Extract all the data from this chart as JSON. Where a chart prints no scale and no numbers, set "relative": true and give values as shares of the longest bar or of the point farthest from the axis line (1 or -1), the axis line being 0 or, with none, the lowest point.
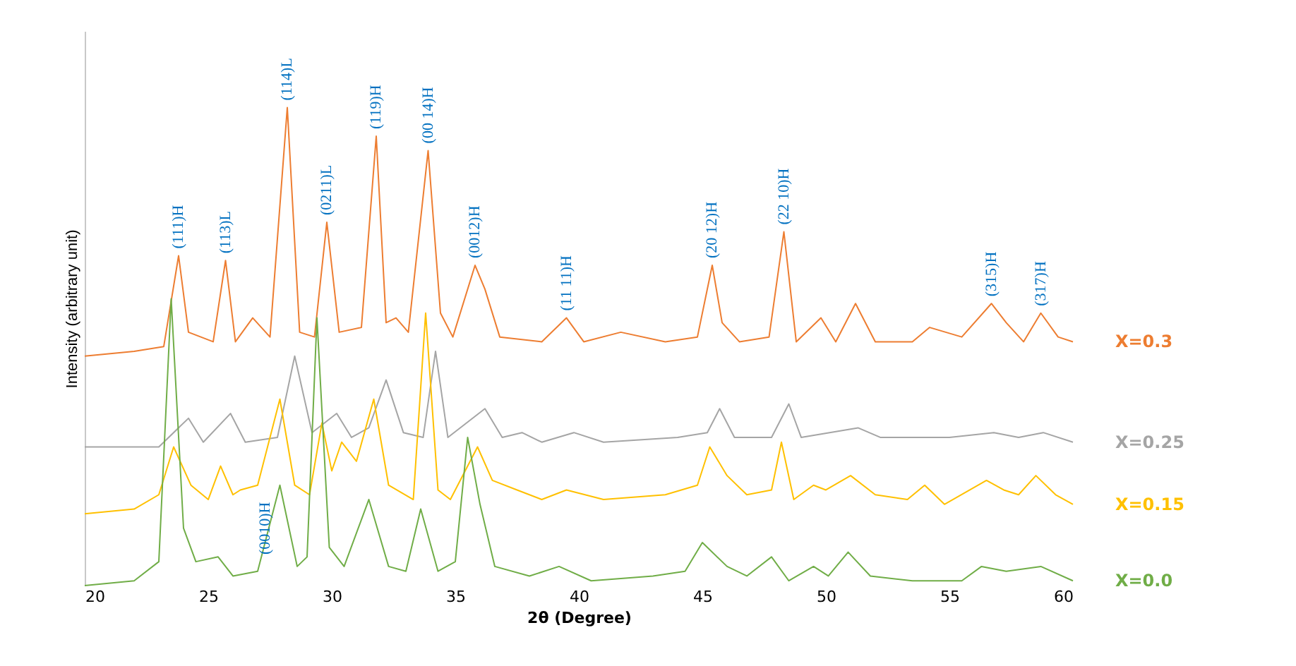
{
  "chart_data": {
    "type": "line",
    "relative": true,
    "xlabel": "2θ (Degree)",
    "ylabel": "Intensity (arbitrary unit)",
    "xlim": [
      20,
      60
    ],
    "xticks": [
      20,
      25,
      30,
      35,
      40,
      45,
      50,
      55,
      60
    ],
    "series": [
      {
        "name": "X=0.3",
        "color": "#ed7d31",
        "x": [
          20,
          22,
          23.2,
          23.8,
          24.2,
          25.2,
          25.7,
          26.1,
          26.8,
          27.5,
          28.2,
          28.7,
          29.3,
          29.8,
          30.3,
          31.2,
          31.8,
          32.2,
          32.6,
          33.1,
          33.9,
          34.4,
          34.9,
          35.8,
          36.2,
          36.8,
          38.5,
          39.5,
          40.2,
          41.7,
          43.5,
          44.8,
          45.4,
          45.8,
          46.5,
          47.7,
          48.3,
          48.8,
          49.8,
          50.4,
          51.2,
          52.0,
          53.5,
          54.2,
          55.5,
          56.7,
          57.3,
          58.0,
          58.7,
          59.4,
          60
        ],
        "values": [
          0.48,
          0.49,
          0.5,
          0.69,
          0.53,
          0.51,
          0.68,
          0.51,
          0.56,
          0.52,
          1.0,
          0.53,
          0.52,
          0.76,
          0.53,
          0.54,
          0.94,
          0.55,
          0.56,
          0.53,
          0.91,
          0.57,
          0.52,
          0.67,
          0.62,
          0.52,
          0.51,
          0.56,
          0.51,
          0.53,
          0.51,
          0.52,
          0.67,
          0.55,
          0.51,
          0.52,
          0.74,
          0.51,
          0.56,
          0.51,
          0.59,
          0.51,
          0.51,
          0.54,
          0.52,
          0.59,
          0.55,
          0.51,
          0.57,
          0.52,
          0.51
        ]
      },
      {
        "name": "X=0.25",
        "color": "#a5a5a5",
        "x": [
          20,
          23,
          24.2,
          24.8,
          25.9,
          26.5,
          27.8,
          28.5,
          29.2,
          30.2,
          30.8,
          31.5,
          32.2,
          32.9,
          33.7,
          34.2,
          34.7,
          36.2,
          36.9,
          37.7,
          38.5,
          39.8,
          41,
          44,
          45.2,
          45.7,
          46.3,
          47.8,
          48.5,
          49.0,
          51.3,
          52.2,
          55,
          56.8,
          57.8,
          58.8,
          60
        ],
        "values": [
          0.29,
          0.29,
          0.35,
          0.3,
          0.36,
          0.3,
          0.31,
          0.48,
          0.32,
          0.36,
          0.31,
          0.33,
          0.43,
          0.32,
          0.31,
          0.49,
          0.31,
          0.37,
          0.31,
          0.32,
          0.3,
          0.32,
          0.3,
          0.31,
          0.32,
          0.37,
          0.31,
          0.31,
          0.38,
          0.31,
          0.33,
          0.31,
          0.31,
          0.32,
          0.31,
          0.32,
          0.3
        ]
      },
      {
        "name": "X=0.15",
        "color": "#ffc000",
        "x": [
          20,
          22,
          23.0,
          23.6,
          24.3,
          25.0,
          25.5,
          26.0,
          26.3,
          27.0,
          27.9,
          28.5,
          29.1,
          29.6,
          30.0,
          30.4,
          31.0,
          31.7,
          32.3,
          33.3,
          33.8,
          34.3,
          34.8,
          35.9,
          36.5,
          37.5,
          38.5,
          39.5,
          41,
          43.5,
          44.8,
          45.3,
          46.0,
          46.8,
          47.8,
          48.2,
          48.7,
          49.5,
          50.0,
          51.0,
          52.0,
          53.3,
          54.0,
          54.8,
          56.5,
          57.2,
          57.8,
          58.5,
          59.3,
          60
        ],
        "values": [
          0.15,
          0.16,
          0.19,
          0.29,
          0.21,
          0.18,
          0.25,
          0.19,
          0.2,
          0.21,
          0.39,
          0.21,
          0.19,
          0.34,
          0.24,
          0.3,
          0.26,
          0.39,
          0.21,
          0.18,
          0.57,
          0.2,
          0.18,
          0.29,
          0.22,
          0.2,
          0.18,
          0.2,
          0.18,
          0.19,
          0.21,
          0.29,
          0.23,
          0.19,
          0.2,
          0.3,
          0.18,
          0.21,
          0.2,
          0.23,
          0.19,
          0.18,
          0.21,
          0.17,
          0.22,
          0.2,
          0.19,
          0.23,
          0.19,
          0.17
        ]
      },
      {
        "name": "X=0.0",
        "color": "#70ad47",
        "x": [
          20,
          22,
          23.0,
          23.5,
          24.0,
          24.5,
          25.4,
          26.0,
          27.0,
          27.9,
          28.6,
          29.0,
          29.4,
          29.9,
          30.5,
          31.5,
          32.3,
          33.0,
          33.6,
          34.3,
          35.0,
          35.5,
          36.0,
          36.6,
          38.0,
          39.2,
          40.5,
          43,
          44.3,
          45.0,
          46.0,
          46.8,
          47.8,
          48.5,
          49.5,
          50.1,
          50.9,
          51.8,
          53.5,
          55.5,
          56.3,
          57.3,
          58.7,
          60
        ],
        "values": [
          0.0,
          0.01,
          0.05,
          0.6,
          0.12,
          0.05,
          0.06,
          0.02,
          0.03,
          0.21,
          0.04,
          0.06,
          0.56,
          0.08,
          0.04,
          0.18,
          0.04,
          0.03,
          0.16,
          0.03,
          0.05,
          0.31,
          0.17,
          0.04,
          0.02,
          0.04,
          0.01,
          0.02,
          0.03,
          0.09,
          0.04,
          0.02,
          0.06,
          0.01,
          0.04,
          0.02,
          0.07,
          0.02,
          0.01,
          0.01,
          0.04,
          0.03,
          0.04,
          0.01
        ]
      }
    ],
    "annotations": [
      {
        "text": "(111)H",
        "x": 23.8,
        "y": 0.69
      },
      {
        "text": "(113)L",
        "x": 25.7,
        "y": 0.68
      },
      {
        "text": "(114)L",
        "x": 28.2,
        "y": 1.0
      },
      {
        "text": "(0211)L",
        "x": 29.8,
        "y": 0.76
      },
      {
        "text": "(119)H",
        "x": 31.8,
        "y": 0.94
      },
      {
        "text": "(00 14)H",
        "x": 33.9,
        "y": 0.91
      },
      {
        "text": "(0012)H",
        "x": 35.8,
        "y": 0.67
      },
      {
        "text": "(11 11)H",
        "x": 39.5,
        "y": 0.56
      },
      {
        "text": "(20 12)H",
        "x": 45.4,
        "y": 0.67
      },
      {
        "text": "(22 10)H",
        "x": 48.3,
        "y": 0.74
      },
      {
        "text": "(315)H",
        "x": 56.7,
        "y": 0.59
      },
      {
        "text": "(317)H",
        "x": 58.7,
        "y": 0.57
      },
      {
        "text": "(0010)H",
        "x": 27.3,
        "y": 0.05
      }
    ]
  }
}
